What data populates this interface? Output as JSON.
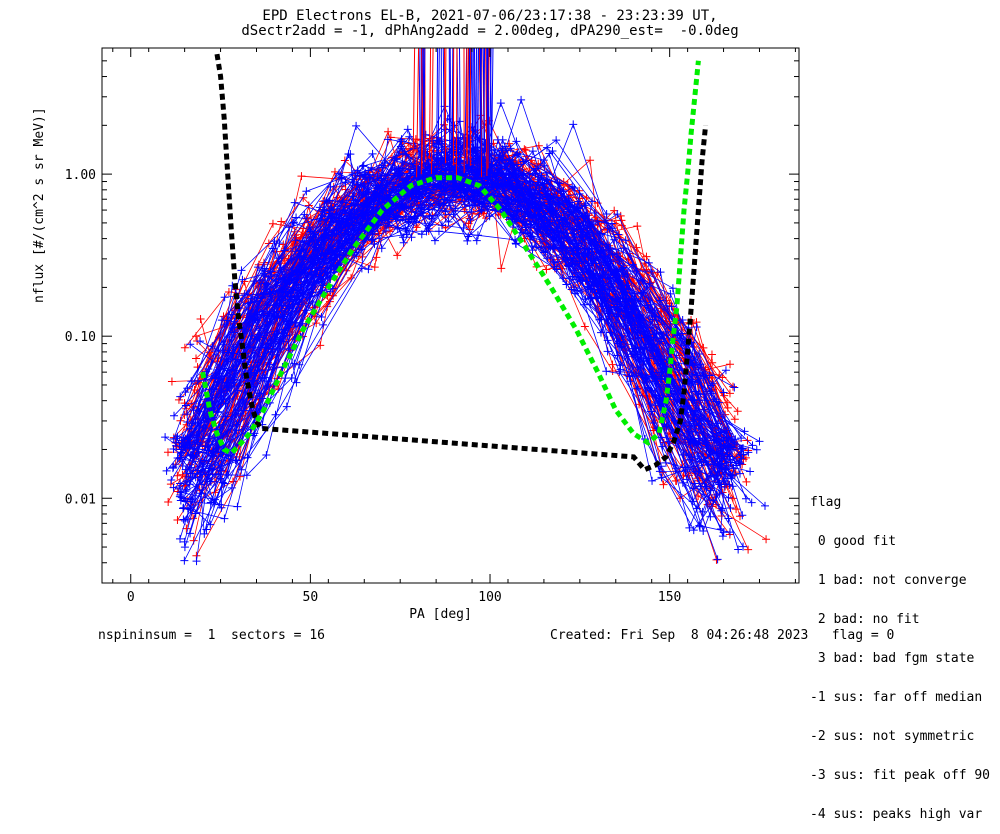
{
  "title_line1": "EPD Electrons EL-B, 2021-07-06/23:17:38 - 23:23:39 UT,",
  "title_line2": "dSectr2add = -1, dPhAng2add = 2.00deg, dPA290_est=  -0.0deg",
  "footer_left": "nspininsum =  1  sectors = 16",
  "footer_right": "Created: Fri Sep  8 04:26:48 2023   flag = 0",
  "legend": {
    "title": "flag",
    "items": [
      " 0 good fit",
      " 1 bad: not converge",
      " 2 bad: no fit",
      " 3 bad: bad fgm state",
      "-1 sus: far off median",
      "-2 sus: not symmetric",
      "-3 sus: fit peak off 90",
      "-4 sus: peaks high var"
    ]
  },
  "colors": {
    "red": "#ff0000",
    "blue": "#0000ff",
    "green": "#00ee00",
    "black": "#000000"
  },
  "chart_data": {
    "type": "line",
    "title": "EPD Electrons EL-B, 2021-07-06/23:17:38 - 23:23:39 UT,",
    "subtitle": "dSectr2add = -1, dPhAng2add = 2.00deg, dPA290_est=  -0.0deg",
    "xlabel": "PA [deg]",
    "ylabel": "nflux [#/(cm^2 s sr MeV)]",
    "xlim": [
      -8,
      186
    ],
    "ylim": [
      0.003,
      6
    ],
    "yscale": "log",
    "x_ticks": [
      0,
      50,
      100,
      150
    ],
    "y_ticks": [
      0.01,
      0.1,
      1.0
    ],
    "y_tick_labels": [
      "0.01",
      "0.10",
      "1.00"
    ],
    "series": [
      {
        "color": "black",
        "style": "dashed-thick",
        "x": [
          24,
          25,
          26,
          27,
          28,
          29,
          30,
          31,
          32,
          33,
          34,
          35,
          36,
          140,
          143,
          146,
          149,
          151,
          153,
          154,
          155,
          156,
          157,
          158,
          159,
          160
        ],
        "y": [
          5.5,
          4.0,
          2.2,
          1.0,
          0.45,
          0.22,
          0.13,
          0.09,
          0.06,
          0.045,
          0.035,
          0.03,
          0.027,
          0.018,
          0.015,
          0.016,
          0.018,
          0.022,
          0.03,
          0.045,
          0.08,
          0.15,
          0.3,
          0.6,
          1.2,
          2.0
        ]
      },
      {
        "color": "green",
        "style": "dashed-thick",
        "x": [
          20,
          22,
          24,
          26,
          28,
          30,
          33,
          37,
          42,
          48,
          55,
          62,
          70,
          78,
          85,
          91,
          97,
          103,
          110,
          117,
          124,
          130,
          135,
          140,
          144,
          147,
          149,
          150,
          151,
          152,
          153,
          154,
          155,
          156,
          157,
          158
        ],
        "y": [
          0.06,
          0.035,
          0.025,
          0.02,
          0.019,
          0.021,
          0.025,
          0.035,
          0.06,
          0.11,
          0.2,
          0.35,
          0.6,
          0.85,
          0.95,
          0.95,
          0.85,
          0.6,
          0.35,
          0.2,
          0.11,
          0.06,
          0.035,
          0.025,
          0.022,
          0.025,
          0.04,
          0.06,
          0.1,
          0.15,
          0.3,
          0.6,
          1.0,
          1.8,
          3.0,
          5.0
        ]
      }
    ],
    "fan_beams": [
      {
        "color": "blue",
        "note": "many overlapping measured curves (flag 0 good fit), peak ~1.0 near 85-100 deg"
      },
      {
        "color": "red",
        "note": "many overlapping measured curves with cross markers, peak ~1.0 near 80-100 deg"
      }
    ]
  }
}
